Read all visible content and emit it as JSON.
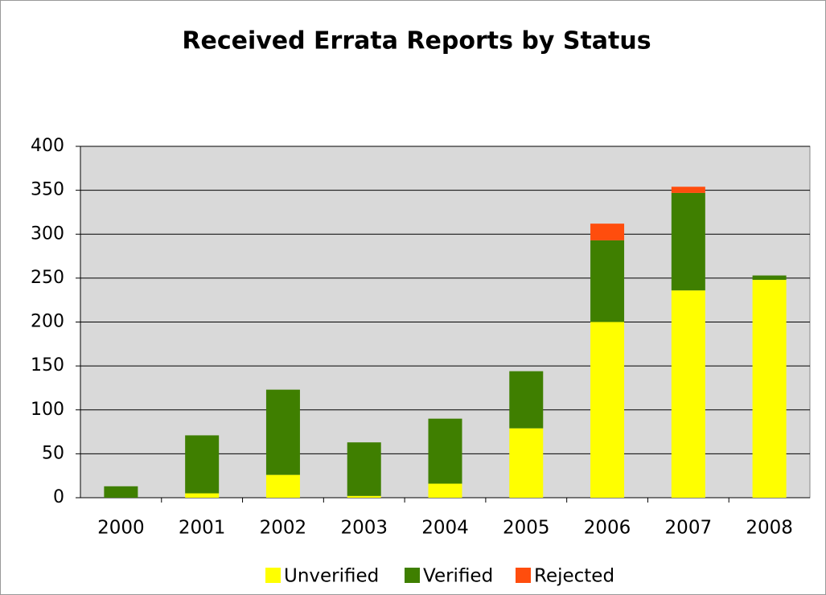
{
  "chart_data": {
    "type": "stacked_bar",
    "title": "Received Errata Reports by Status",
    "categories": [
      "2000",
      "2001",
      "2002",
      "2003",
      "2004",
      "2005",
      "2006",
      "2007",
      "2008"
    ],
    "series": [
      {
        "name": "Unverified",
        "color": "#ffff00",
        "values": [
          0,
          5,
          26,
          2,
          16,
          79,
          200,
          236,
          248
        ]
      },
      {
        "name": "Verified",
        "color": "#3f7f00",
        "values": [
          13,
          66,
          97,
          61,
          74,
          65,
          93,
          111,
          5
        ]
      },
      {
        "name": "Rejected",
        "color": "#ff4d0d",
        "values": [
          0,
          0,
          0,
          0,
          0,
          0,
          19,
          7,
          0
        ]
      }
    ],
    "ylim": [
      0,
      400
    ],
    "yticks": [
      0,
      50,
      100,
      150,
      200,
      250,
      300,
      350,
      400
    ],
    "grid": true,
    "legend": "bottom"
  }
}
